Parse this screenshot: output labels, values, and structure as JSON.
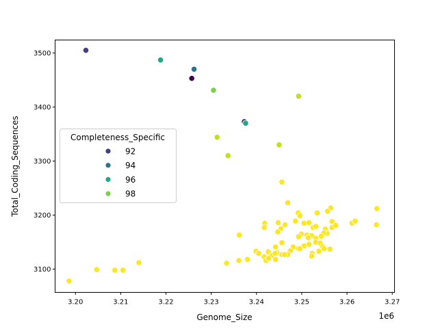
{
  "chart_data": {
    "type": "scatter",
    "title": "",
    "xlabel": "Genome_Size",
    "ylabel": "Total_Coding_Sequences",
    "x_offset_label": "1e6",
    "xlim": [
      3.1955,
      3.2705
    ],
    "ylim": [
      3057,
      3524
    ],
    "x_ticks": [
      "3.20",
      "3.21",
      "3.22",
      "3.23",
      "3.24",
      "3.25",
      "3.26",
      "3.27"
    ],
    "y_ticks": [
      "3100",
      "3200",
      "3300",
      "3400",
      "3500"
    ],
    "grid": false,
    "legend": {
      "title": "Completeness_Specific",
      "placement": "center-left",
      "entries": [
        {
          "label": "92",
          "color": "#423f85"
        },
        {
          "label": "94",
          "color": "#2c728e"
        },
        {
          "label": "96",
          "color": "#22a884"
        },
        {
          "label": "98",
          "color": "#7ad151"
        }
      ]
    },
    "hue_colors": {
      "91": "#440154",
      "92": "#423f85",
      "94": "#2c728e",
      "96": "#22a884",
      "98": "#7ad151",
      "99": "#c2df23",
      "100": "#fde725"
    },
    "points": [
      {
        "x": 3.2023,
        "y": 3505,
        "hue": 92
      },
      {
        "x": 3.2188,
        "y": 3487,
        "hue": 96
      },
      {
        "x": 3.2262,
        "y": 3470,
        "hue": 94
      },
      {
        "x": 3.2257,
        "y": 3453,
        "hue": 91
      },
      {
        "x": 3.2305,
        "y": 3431,
        "hue": 98
      },
      {
        "x": 3.2493,
        "y": 3420,
        "hue": 99
      },
      {
        "x": 3.2373,
        "y": 3373,
        "hue": 92
      },
      {
        "x": 3.2376,
        "y": 3370,
        "hue": 96
      },
      {
        "x": 3.2313,
        "y": 3344,
        "hue": 99
      },
      {
        "x": 3.245,
        "y": 3330,
        "hue": 99
      },
      {
        "x": 3.2337,
        "y": 3310,
        "hue": 99
      },
      {
        "x": 3.1986,
        "y": 3078,
        "hue": 100
      },
      {
        "x": 3.2047,
        "y": 3099,
        "hue": 100
      },
      {
        "x": 3.2087,
        "y": 3098,
        "hue": 100
      },
      {
        "x": 3.2105,
        "y": 3098,
        "hue": 100
      },
      {
        "x": 3.214,
        "y": 3112,
        "hue": 100
      },
      {
        "x": 3.2334,
        "y": 3111,
        "hue": 100
      },
      {
        "x": 3.2456,
        "y": 3261,
        "hue": 100
      },
      {
        "x": 3.2469,
        "y": 3223,
        "hue": 100
      },
      {
        "x": 3.2666,
        "y": 3212,
        "hue": 100
      },
      {
        "x": 3.2665,
        "y": 3182,
        "hue": 100
      },
      {
        "x": 3.2611,
        "y": 3185,
        "hue": 100
      },
      {
        "x": 3.2618,
        "y": 3189,
        "hue": 100
      },
      {
        "x": 3.2564,
        "y": 3213,
        "hue": 100
      },
      {
        "x": 3.2557,
        "y": 3207,
        "hue": 100
      },
      {
        "x": 3.2534,
        "y": 3204,
        "hue": 100
      },
      {
        "x": 3.2492,
        "y": 3204,
        "hue": 100
      },
      {
        "x": 3.2496,
        "y": 3199,
        "hue": 100
      },
      {
        "x": 3.2486,
        "y": 3189,
        "hue": 100
      },
      {
        "x": 3.2448,
        "y": 3186,
        "hue": 100
      },
      {
        "x": 3.2418,
        "y": 3185,
        "hue": 100
      },
      {
        "x": 3.2417,
        "y": 3177,
        "hue": 100
      },
      {
        "x": 3.2463,
        "y": 3182,
        "hue": 100
      },
      {
        "x": 3.2454,
        "y": 3175,
        "hue": 100
      },
      {
        "x": 3.2447,
        "y": 3169,
        "hue": 100
      },
      {
        "x": 3.2362,
        "y": 3163,
        "hue": 100
      },
      {
        "x": 3.2505,
        "y": 3185,
        "hue": 100
      },
      {
        "x": 3.2516,
        "y": 3186,
        "hue": 100
      },
      {
        "x": 3.2525,
        "y": 3177,
        "hue": 100
      },
      {
        "x": 3.2531,
        "y": 3179,
        "hue": 100
      },
      {
        "x": 3.2552,
        "y": 3174,
        "hue": 100
      },
      {
        "x": 3.2567,
        "y": 3188,
        "hue": 100
      },
      {
        "x": 3.2567,
        "y": 3177,
        "hue": 100
      },
      {
        "x": 3.2575,
        "y": 3181,
        "hue": 100
      },
      {
        "x": 3.2556,
        "y": 3166,
        "hue": 100
      },
      {
        "x": 3.2549,
        "y": 3167,
        "hue": 100
      },
      {
        "x": 3.2543,
        "y": 3161,
        "hue": 100
      },
      {
        "x": 3.2499,
        "y": 3165,
        "hue": 100
      },
      {
        "x": 3.2493,
        "y": 3160,
        "hue": 100
      },
      {
        "x": 3.2511,
        "y": 3163,
        "hue": 100
      },
      {
        "x": 3.2522,
        "y": 3162,
        "hue": 100
      },
      {
        "x": 3.2514,
        "y": 3158,
        "hue": 100
      },
      {
        "x": 3.2531,
        "y": 3157,
        "hue": 100
      },
      {
        "x": 3.2456,
        "y": 3149,
        "hue": 100
      },
      {
        "x": 3.2531,
        "y": 3150,
        "hue": 100
      },
      {
        "x": 3.2541,
        "y": 3148,
        "hue": 100
      },
      {
        "x": 3.2516,
        "y": 3146,
        "hue": 100
      },
      {
        "x": 3.2505,
        "y": 3143,
        "hue": 100
      },
      {
        "x": 3.2442,
        "y": 3141,
        "hue": 100
      },
      {
        "x": 3.2481,
        "y": 3141,
        "hue": 100
      },
      {
        "x": 3.2492,
        "y": 3138,
        "hue": 100
      },
      {
        "x": 3.2496,
        "y": 3138,
        "hue": 100
      },
      {
        "x": 3.2546,
        "y": 3142,
        "hue": 100
      },
      {
        "x": 3.2549,
        "y": 3138,
        "hue": 100
      },
      {
        "x": 3.2562,
        "y": 3137,
        "hue": 100
      },
      {
        "x": 3.2475,
        "y": 3134,
        "hue": 100
      },
      {
        "x": 3.2469,
        "y": 3127,
        "hue": 100
      },
      {
        "x": 3.2456,
        "y": 3127,
        "hue": 100
      },
      {
        "x": 3.2445,
        "y": 3130,
        "hue": 100
      },
      {
        "x": 3.2399,
        "y": 3133,
        "hue": 100
      },
      {
        "x": 3.2405,
        "y": 3129,
        "hue": 100
      },
      {
        "x": 3.2426,
        "y": 3132,
        "hue": 100
      },
      {
        "x": 3.2433,
        "y": 3125,
        "hue": 100
      },
      {
        "x": 3.2441,
        "y": 3129,
        "hue": 100
      },
      {
        "x": 3.2417,
        "y": 3123,
        "hue": 100
      },
      {
        "x": 3.2421,
        "y": 3116,
        "hue": 100
      },
      {
        "x": 3.2427,
        "y": 3120,
        "hue": 100
      },
      {
        "x": 3.2442,
        "y": 3118,
        "hue": 100
      },
      {
        "x": 3.2523,
        "y": 3129,
        "hue": 100
      },
      {
        "x": 3.2522,
        "y": 3124,
        "hue": 100
      },
      {
        "x": 3.2538,
        "y": 3133,
        "hue": 100
      },
      {
        "x": 3.2361,
        "y": 3116,
        "hue": 100
      },
      {
        "x": 3.238,
        "y": 3118,
        "hue": 100
      },
      {
        "x": 3.2462,
        "y": 3127,
        "hue": 100
      }
    ]
  }
}
